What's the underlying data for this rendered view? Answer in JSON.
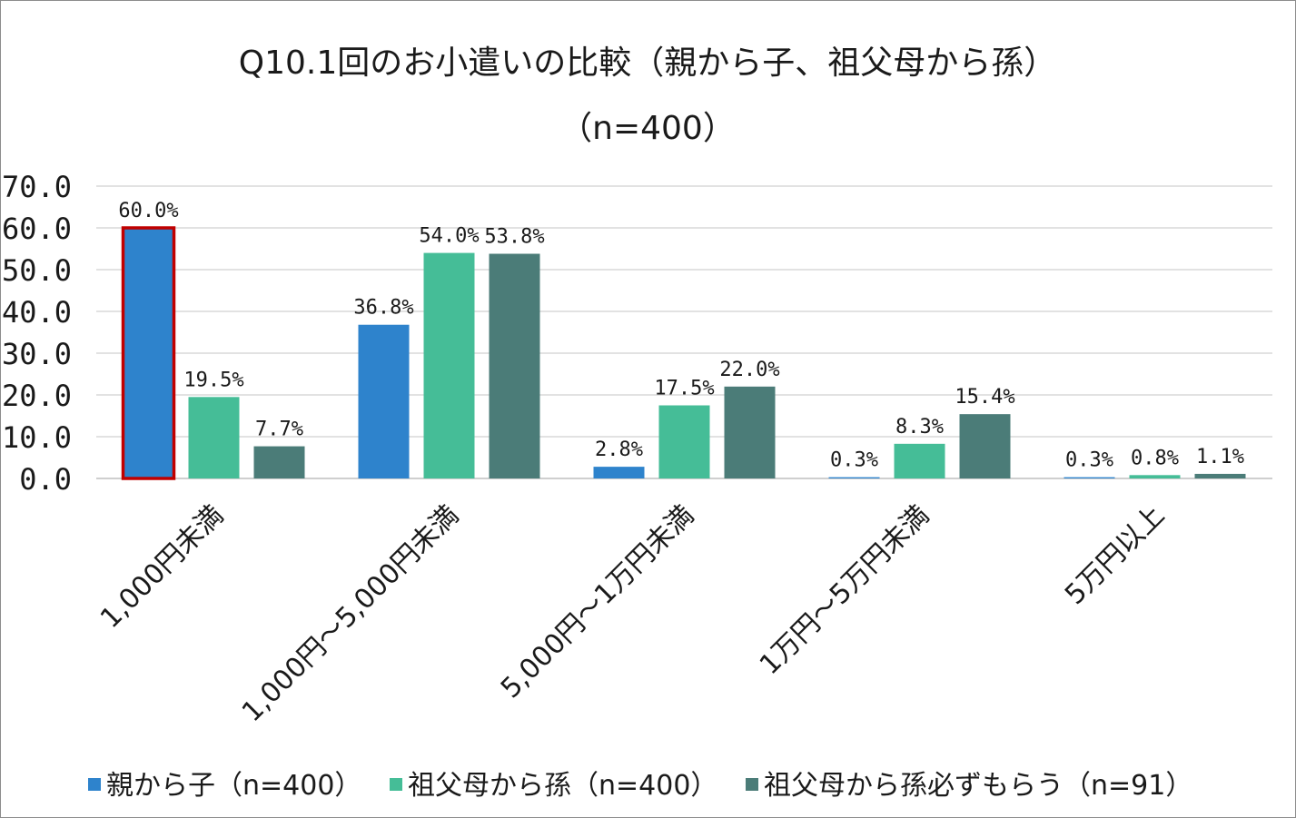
{
  "chart_data": {
    "type": "bar",
    "title": "Q10.1回のお小遣いの比較（親から子、祖父母から孫）",
    "subtitle": "（n=400）",
    "categories": [
      "1,000円未満",
      "1,000円～5,000円未満",
      "5,000円～1万円未満",
      "1万円～5万円未満",
      "5万円以上"
    ],
    "series": [
      {
        "name": "親から子（n=400）",
        "color": "#2e83cc",
        "values": [
          60.0,
          36.8,
          2.8,
          0.3,
          0.3
        ]
      },
      {
        "name": "祖父母から孫（n=400）",
        "color": "#45bd97",
        "values": [
          19.5,
          54.0,
          17.5,
          8.3,
          0.8
        ]
      },
      {
        "name": "祖父母から孫必ずもらう（n=91）",
        "color": "#4b7c78",
        "values": [
          7.7,
          53.8,
          22.0,
          15.4,
          1.1
        ]
      }
    ],
    "data_labels": [
      [
        "60.0%",
        "36.8%",
        "2.8%",
        "0.3%",
        "0.3%"
      ],
      [
        "19.5%",
        "54.0%",
        "17.5%",
        "8.3%",
        "0.8%"
      ],
      [
        "7.7%",
        "53.8%",
        "22.0%",
        "15.4%",
        "1.1%"
      ]
    ],
    "y_ticks": [
      "0.0",
      "10.0",
      "20.0",
      "30.0",
      "40.0",
      "50.0",
      "60.0",
      "70.0"
    ],
    "ylim": [
      0,
      70
    ],
    "grid": true,
    "legend_position": "bottom",
    "highlight": {
      "series": 0,
      "category": 0,
      "color": "#c00000"
    }
  }
}
